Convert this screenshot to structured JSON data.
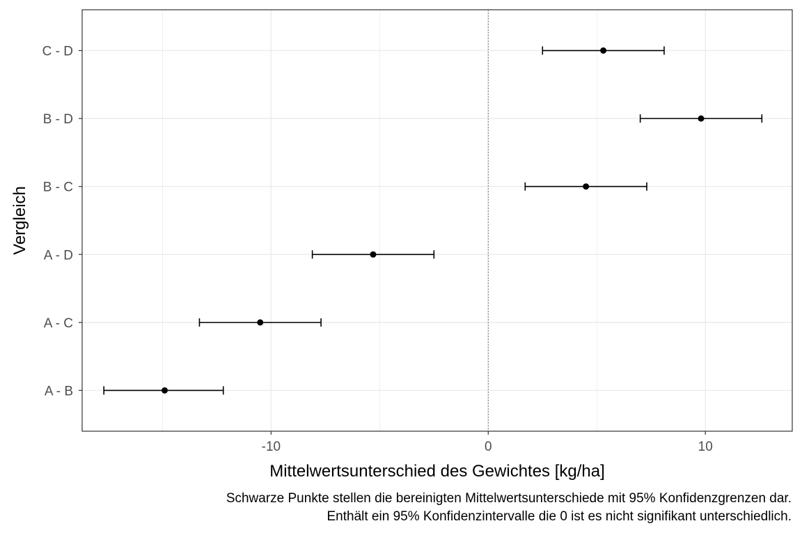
{
  "chart_data": {
    "type": "errorbar",
    "orientation": "horizontal",
    "xlabel": "Mittelwertsunterschied des Gewichtes [kg/ha]",
    "ylabel": "Vergleich",
    "xlim": [
      -18.7,
      14.0
    ],
    "x_ticks": [
      -10,
      0,
      10
    ],
    "x_tick_labels": [
      "-10",
      "0",
      "10"
    ],
    "reference_line": 0,
    "grid": true,
    "categories": [
      "A - B",
      "A - C",
      "A - D",
      "B - C",
      "B - D",
      "C - D"
    ],
    "estimates": [
      -14.9,
      -10.5,
      -5.3,
      4.5,
      9.8,
      5.3
    ],
    "ci_lower": [
      -17.7,
      -13.3,
      -8.1,
      1.7,
      7.0,
      2.5
    ],
    "ci_upper": [
      -12.2,
      -7.7,
      -2.5,
      7.3,
      12.6,
      8.1
    ]
  },
  "caption": {
    "line1": "Schwarze Punkte stellen die bereinigten Mittelwertsunterschiede mit 95% Konfidenzgrenzen dar.",
    "line2": "Enthält ein 95% Konfidenzintervalle die 0 ist es nicht signifikant unterschiedlich."
  },
  "colors": {
    "point": "#000000",
    "grid": "#ebebeb",
    "panel_border": "#333333",
    "reference_line": "#808080"
  }
}
